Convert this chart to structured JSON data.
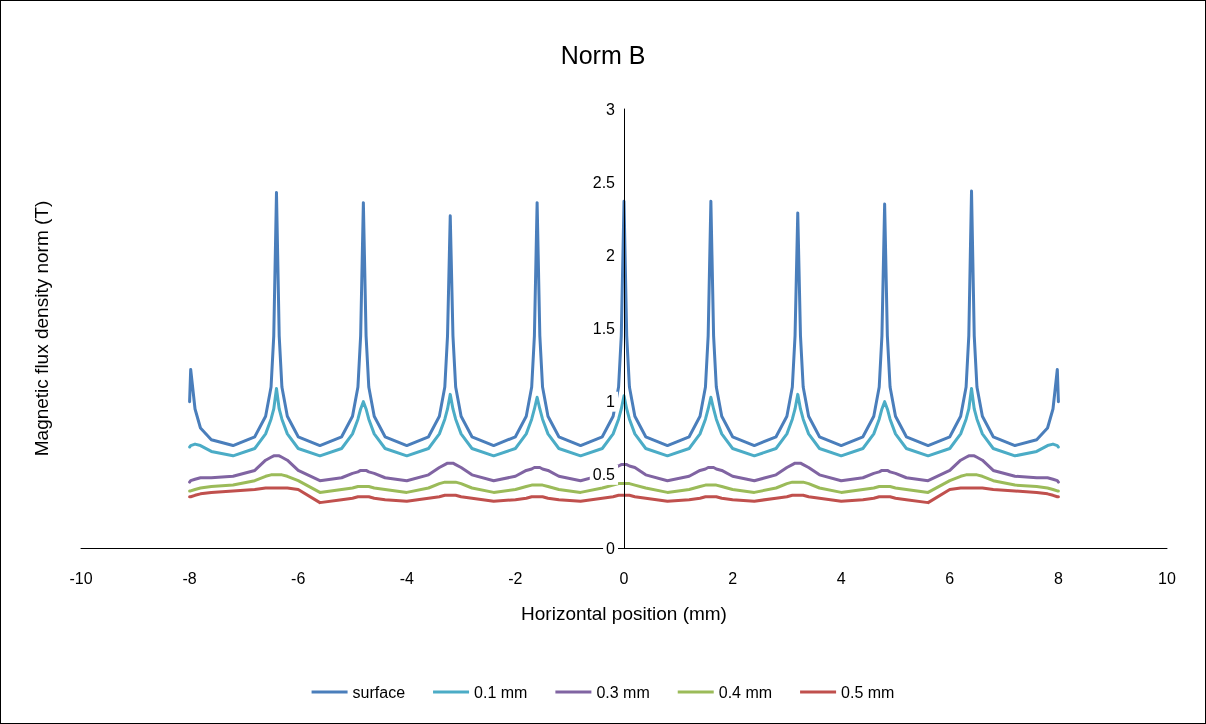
{
  "chart_data": {
    "type": "line",
    "title": "Norm B",
    "xlabel": "Horizontal position (mm)",
    "ylabel": "Magnetic flux density norm (T)",
    "x": [
      -8,
      -7.98,
      -7.9,
      -7.8,
      -7.6,
      -7.2,
      -6.8,
      -6.6,
      -6.5,
      -6.45,
      -6.4,
      -6.35,
      -6.3,
      -6.2,
      -6.0,
      -5.6,
      -5.2,
      -5.0,
      -4.9,
      -4.85,
      -4.8,
      -4.75,
      -4.7,
      -4.6,
      -4.4,
      -4.0,
      -3.6,
      -3.4,
      -3.3,
      -3.25,
      -3.2,
      -3.15,
      -3.1,
      -3.0,
      -2.8,
      -2.4,
      -2.0,
      -1.8,
      -1.7,
      -1.65,
      -1.6,
      -1.55,
      -1.5,
      -1.4,
      -1.2,
      -0.8,
      -0.4,
      -0.2,
      -0.1,
      -0.05,
      0,
      0.05,
      0.1,
      0.2,
      0.4,
      0.8,
      1.2,
      1.4,
      1.5,
      1.55,
      1.6,
      1.65,
      1.7,
      1.8,
      2.0,
      2.4,
      2.8,
      3.0,
      3.1,
      3.15,
      3.2,
      3.25,
      3.3,
      3.4,
      3.6,
      4.0,
      4.4,
      4.6,
      4.7,
      4.75,
      4.8,
      4.85,
      4.9,
      5.0,
      5.2,
      5.6,
      6.0,
      6.2,
      6.3,
      6.35,
      6.4,
      6.45,
      6.5,
      6.6,
      6.8,
      7.2,
      7.6,
      7.8,
      7.9,
      7.98,
      8
    ],
    "series": [
      {
        "name": "surface",
        "color": "#4a7ebb",
        "values": [
          1.0,
          1.22,
          0.95,
          0.82,
          0.74,
          0.7,
          0.76,
          0.9,
          1.1,
          1.45,
          2.43,
          1.45,
          1.1,
          0.9,
          0.76,
          0.7,
          0.76,
          0.9,
          1.1,
          1.45,
          2.36,
          1.45,
          1.1,
          0.9,
          0.76,
          0.7,
          0.76,
          0.9,
          1.1,
          1.45,
          2.27,
          1.45,
          1.1,
          0.9,
          0.76,
          0.7,
          0.76,
          0.9,
          1.1,
          1.45,
          2.36,
          1.45,
          1.1,
          0.9,
          0.76,
          0.7,
          0.76,
          0.9,
          1.1,
          1.45,
          2.37,
          1.45,
          1.1,
          0.9,
          0.76,
          0.7,
          0.76,
          0.9,
          1.1,
          1.45,
          2.37,
          1.45,
          1.1,
          0.9,
          0.76,
          0.7,
          0.76,
          0.9,
          1.1,
          1.45,
          2.29,
          1.45,
          1.1,
          0.9,
          0.76,
          0.7,
          0.76,
          0.9,
          1.1,
          1.45,
          2.35,
          1.45,
          1.1,
          0.9,
          0.76,
          0.7,
          0.76,
          0.9,
          1.1,
          1.45,
          2.44,
          1.45,
          1.1,
          0.9,
          0.76,
          0.7,
          0.74,
          0.82,
          0.95,
          1.22,
          1.0
        ]
      },
      {
        "name": "0.1 mm",
        "color": "#4bacc6",
        "values": [
          0.69,
          0.7,
          0.71,
          0.7,
          0.66,
          0.63,
          0.68,
          0.78,
          0.88,
          0.95,
          1.09,
          0.95,
          0.88,
          0.78,
          0.68,
          0.63,
          0.68,
          0.78,
          0.88,
          0.95,
          1.0,
          0.95,
          0.88,
          0.78,
          0.68,
          0.63,
          0.68,
          0.78,
          0.88,
          0.95,
          1.05,
          0.95,
          0.88,
          0.78,
          0.68,
          0.63,
          0.68,
          0.78,
          0.88,
          0.95,
          1.03,
          0.95,
          0.88,
          0.78,
          0.68,
          0.63,
          0.68,
          0.78,
          0.88,
          0.95,
          1.04,
          0.95,
          0.88,
          0.78,
          0.68,
          0.63,
          0.68,
          0.78,
          0.88,
          0.95,
          1.03,
          0.95,
          0.88,
          0.78,
          0.68,
          0.63,
          0.68,
          0.78,
          0.88,
          0.95,
          1.05,
          0.95,
          0.88,
          0.78,
          0.68,
          0.63,
          0.68,
          0.78,
          0.88,
          0.95,
          1.0,
          0.95,
          0.88,
          0.78,
          0.68,
          0.63,
          0.68,
          0.78,
          0.88,
          0.95,
          1.09,
          0.95,
          0.88,
          0.78,
          0.68,
          0.63,
          0.66,
          0.7,
          0.71,
          0.7,
          0.69
        ]
      },
      {
        "name": "0.3 mm",
        "color": "#8064a2",
        "values": [
          0.45,
          0.46,
          0.47,
          0.48,
          0.48,
          0.49,
          0.53,
          0.6,
          0.62,
          0.63,
          0.63,
          0.63,
          0.62,
          0.6,
          0.53,
          0.46,
          0.48,
          0.51,
          0.52,
          0.53,
          0.53,
          0.53,
          0.52,
          0.51,
          0.48,
          0.46,
          0.5,
          0.55,
          0.57,
          0.58,
          0.58,
          0.58,
          0.57,
          0.55,
          0.5,
          0.46,
          0.49,
          0.53,
          0.54,
          0.55,
          0.55,
          0.55,
          0.54,
          0.53,
          0.49,
          0.46,
          0.5,
          0.55,
          0.56,
          0.57,
          0.57,
          0.57,
          0.56,
          0.55,
          0.5,
          0.46,
          0.49,
          0.53,
          0.54,
          0.55,
          0.55,
          0.55,
          0.54,
          0.53,
          0.49,
          0.46,
          0.5,
          0.55,
          0.57,
          0.58,
          0.58,
          0.58,
          0.57,
          0.55,
          0.5,
          0.46,
          0.48,
          0.51,
          0.52,
          0.53,
          0.53,
          0.53,
          0.52,
          0.51,
          0.48,
          0.46,
          0.53,
          0.6,
          0.62,
          0.63,
          0.63,
          0.63,
          0.62,
          0.6,
          0.53,
          0.49,
          0.48,
          0.48,
          0.47,
          0.46,
          0.45
        ]
      },
      {
        "name": "0.4 mm",
        "color": "#9bbb59",
        "values": [
          0.39,
          0.39,
          0.4,
          0.41,
          0.42,
          0.43,
          0.46,
          0.49,
          0.5,
          0.5,
          0.5,
          0.5,
          0.5,
          0.49,
          0.46,
          0.38,
          0.4,
          0.41,
          0.42,
          0.42,
          0.42,
          0.42,
          0.42,
          0.41,
          0.4,
          0.38,
          0.41,
          0.44,
          0.45,
          0.45,
          0.45,
          0.45,
          0.45,
          0.44,
          0.41,
          0.38,
          0.4,
          0.42,
          0.43,
          0.43,
          0.43,
          0.43,
          0.43,
          0.42,
          0.4,
          0.38,
          0.41,
          0.43,
          0.44,
          0.44,
          0.44,
          0.44,
          0.44,
          0.43,
          0.41,
          0.38,
          0.4,
          0.42,
          0.43,
          0.43,
          0.43,
          0.43,
          0.43,
          0.42,
          0.4,
          0.38,
          0.41,
          0.44,
          0.45,
          0.45,
          0.45,
          0.45,
          0.45,
          0.44,
          0.41,
          0.38,
          0.4,
          0.41,
          0.42,
          0.42,
          0.42,
          0.42,
          0.42,
          0.41,
          0.4,
          0.38,
          0.46,
          0.49,
          0.5,
          0.5,
          0.5,
          0.5,
          0.5,
          0.49,
          0.46,
          0.43,
          0.42,
          0.41,
          0.4,
          0.39,
          0.39
        ]
      },
      {
        "name": "0.5 mm",
        "color": "#c0504d",
        "values": [
          0.35,
          0.35,
          0.36,
          0.37,
          0.38,
          0.39,
          0.4,
          0.41,
          0.41,
          0.41,
          0.41,
          0.41,
          0.41,
          0.41,
          0.4,
          0.31,
          0.33,
          0.34,
          0.35,
          0.35,
          0.35,
          0.35,
          0.35,
          0.34,
          0.33,
          0.32,
          0.34,
          0.35,
          0.36,
          0.36,
          0.36,
          0.36,
          0.36,
          0.35,
          0.34,
          0.32,
          0.33,
          0.34,
          0.35,
          0.35,
          0.35,
          0.35,
          0.35,
          0.34,
          0.33,
          0.32,
          0.34,
          0.35,
          0.36,
          0.36,
          0.36,
          0.36,
          0.36,
          0.35,
          0.34,
          0.32,
          0.33,
          0.34,
          0.35,
          0.35,
          0.35,
          0.35,
          0.35,
          0.34,
          0.33,
          0.32,
          0.34,
          0.35,
          0.36,
          0.36,
          0.36,
          0.36,
          0.36,
          0.35,
          0.34,
          0.32,
          0.33,
          0.34,
          0.35,
          0.35,
          0.35,
          0.35,
          0.35,
          0.34,
          0.33,
          0.31,
          0.4,
          0.41,
          0.41,
          0.41,
          0.41,
          0.41,
          0.41,
          0.41,
          0.4,
          0.39,
          0.38,
          0.37,
          0.36,
          0.35,
          0.35
        ]
      }
    ],
    "xlim": [
      -10,
      10
    ],
    "xticks": [
      -10,
      -8,
      -6,
      -4,
      -2,
      0,
      2,
      4,
      6,
      8,
      10
    ],
    "ylim": [
      0,
      3
    ],
    "yticks": [
      0,
      0.5,
      1,
      1.5,
      2,
      2.5,
      3
    ],
    "grid": false,
    "legend": "bottom",
    "marker": "none",
    "line_style": "solid"
  }
}
